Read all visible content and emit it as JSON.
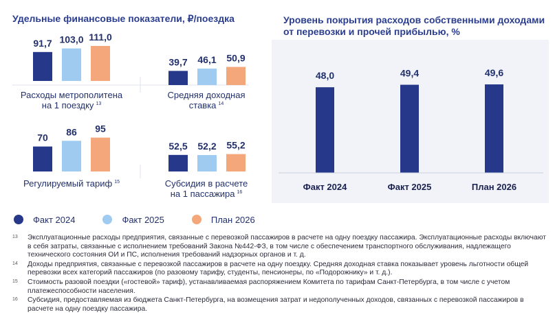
{
  "left_title": "Удельные финансовые показатели, ₽/поездка",
  "right_title_line1": "Уровень покрытия расходов собственными доходами",
  "right_title_line2": "от перевозки и прочей прибылью, %",
  "colors": {
    "fakt2024": "#253889",
    "fakt2025": "#9ecbef",
    "plan2026": "#f4a77a",
    "title": "#2a3d8f"
  },
  "legend": [
    {
      "label": "Факт 2024",
      "color": "#253889"
    },
    {
      "label": "Факт 2025",
      "color": "#9ecbef"
    },
    {
      "label": "План 2026",
      "color": "#f4a77a"
    }
  ],
  "chart_data": [
    {
      "type": "bar",
      "label_lines": [
        "Расходы метрополитена",
        "на 1 поездку"
      ],
      "footnote": "13",
      "series": [
        {
          "name": "Факт 2024",
          "value": 91.7,
          "text": "91,7"
        },
        {
          "name": "Факт 2025",
          "value": 103.0,
          "text": "103,0"
        },
        {
          "name": "План 2026",
          "value": 111.0,
          "text": "111,0"
        }
      ]
    },
    {
      "type": "bar",
      "label_lines": [
        "Средняя доходная",
        "ставка"
      ],
      "footnote": "14",
      "series": [
        {
          "name": "Факт 2024",
          "value": 39.7,
          "text": "39,7"
        },
        {
          "name": "Факт 2025",
          "value": 46.1,
          "text": "46,1"
        },
        {
          "name": "План 2026",
          "value": 50.9,
          "text": "50,9"
        }
      ]
    },
    {
      "type": "bar",
      "label_lines": [
        "Регулируемый тариф"
      ],
      "footnote": "15",
      "series": [
        {
          "name": "Факт 2024",
          "value": 70,
          "text": "70"
        },
        {
          "name": "Факт 2025",
          "value": 86,
          "text": "86"
        },
        {
          "name": "План 2026",
          "value": 95,
          "text": "95"
        }
      ]
    },
    {
      "type": "bar",
      "label_lines": [
        "Субсидия в расчете",
        "на 1 пассажира"
      ],
      "footnote": "16",
      "series": [
        {
          "name": "Факт 2024",
          "value": 52.5,
          "text": "52,5"
        },
        {
          "name": "Факт 2025",
          "value": 52.2,
          "text": "52,2"
        },
        {
          "name": "План 2026",
          "value": 55.2,
          "text": "55,2"
        }
      ]
    },
    {
      "type": "bar",
      "categories": [
        "Факт 2024",
        "Факт 2025",
        "План 2026"
      ],
      "values": [
        48.0,
        49.4,
        49.6
      ],
      "value_texts": [
        "48,0",
        "49,4",
        "49,6"
      ]
    }
  ],
  "footnotes": [
    {
      "num": "13",
      "text": "Эксплуатационные расходы предприятия, связанные с перевозкой пассажиров в расчете на одну поездку пассажира. Эксплуатационные расходы включают в себя затраты, связанные с исполнением требований Закона №442-ФЗ, в том числе с обеспечением транспортного обслуживания, надлежащего технического состояния ОИ и ПС, исполнения требований надзорных органов и т. д."
    },
    {
      "num": "14",
      "text": "Доходы предприятия, связанные с перевозкой пассажиров в расчете на одну поездку. Средняя доходная ставка показывает уровень льготности общей перевозки всех категорий пассажиров (по разовому тарифу, студенты, пенсионеры, по «Подорожнику» и т. д.)."
    },
    {
      "num": "15",
      "text": "Стоимость разовой поездки («гостевой» тариф), устанавливаемая распоряжением Комитета по тарифам Санкт-Петербурга, в том числе с учетом платежеспособности населения."
    },
    {
      "num": "16",
      "text": "Субсидия, предоставляемая из бюджета Санкт-Петербурга, на возмещения затрат и недополученных доходов, связанных с перевозкой пассажиров в расчете на одну поездку пассажира."
    }
  ]
}
